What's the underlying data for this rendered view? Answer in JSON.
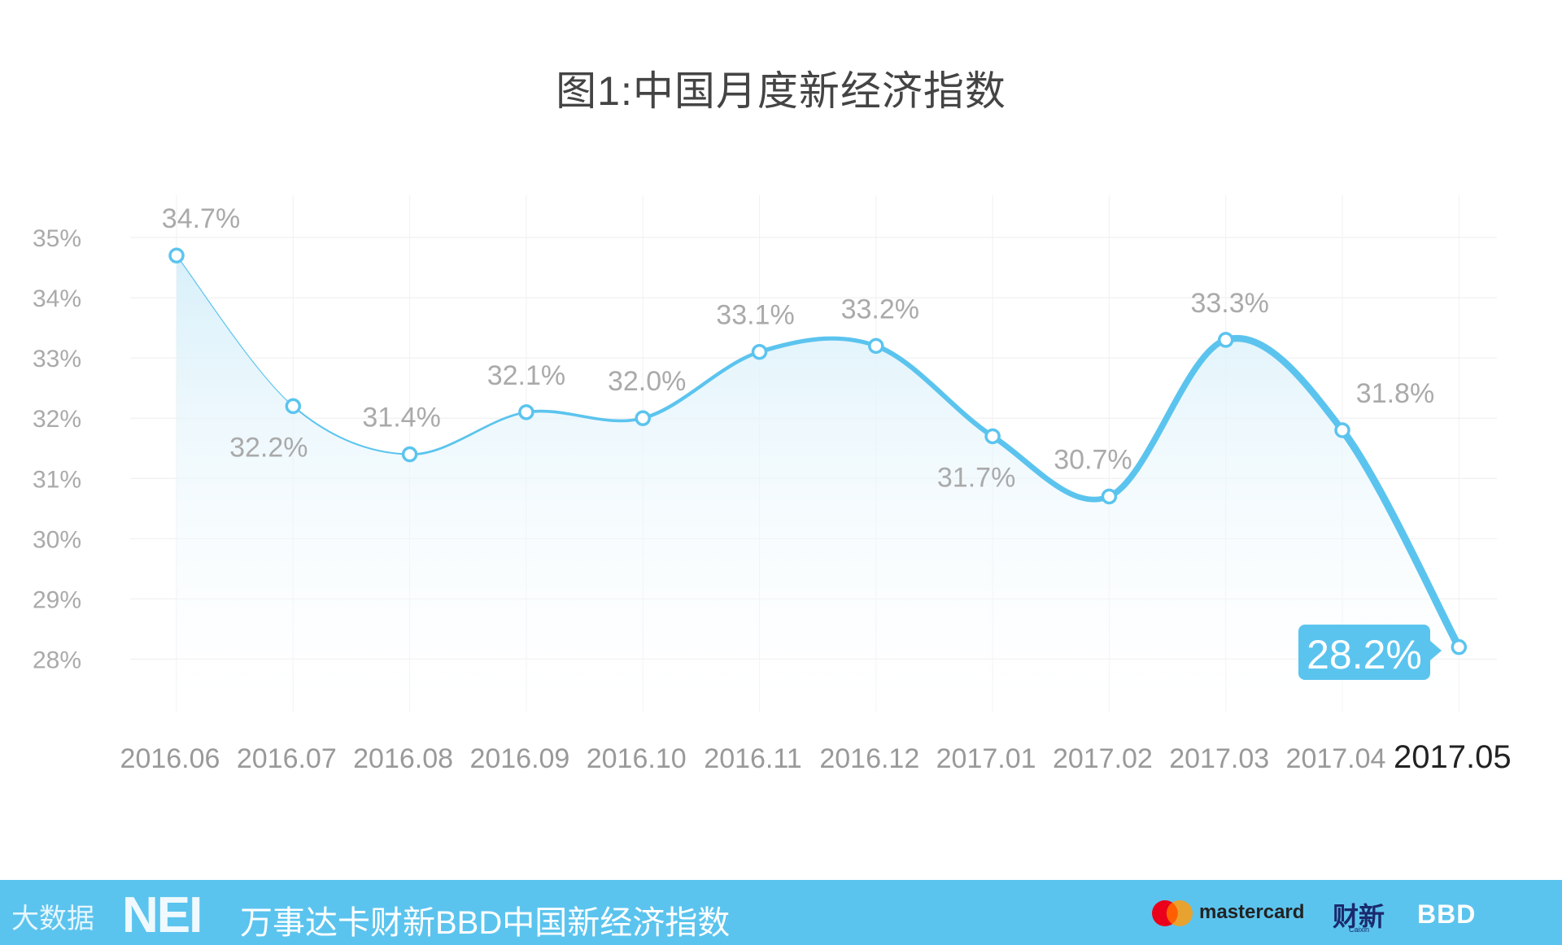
{
  "title": "图1:中国月度新经济指数",
  "chart_data": {
    "type": "line",
    "categories": [
      "2016.06",
      "2016.07",
      "2016.08",
      "2016.09",
      "2016.10",
      "2016.11",
      "2016.12",
      "2017.01",
      "2017.02",
      "2017.03",
      "2017.04",
      "2017.05"
    ],
    "values": [
      34.7,
      32.2,
      31.4,
      32.1,
      32.0,
      33.1,
      33.2,
      31.7,
      30.7,
      33.3,
      31.8,
      28.2
    ],
    "data_labels": [
      "34.7%",
      "32.2%",
      "31.4%",
      "32.1%",
      "32.0%",
      "33.1%",
      "33.2%",
      "31.7%",
      "30.7%",
      "33.3%",
      "31.8%",
      "28.2%"
    ],
    "y_ticks": [
      "35%",
      "34%",
      "33%",
      "32%",
      "31%",
      "30%",
      "29%",
      "28%"
    ],
    "ylim": [
      28,
      35
    ],
    "grid": true,
    "highlight_index": 11,
    "line_color": "#5bc4ee",
    "area_color": "#e6f5fc"
  },
  "footer": {
    "watermark": "大数据",
    "brand_short": "NEI",
    "title": "万事达卡财新BBD中国新经济指数",
    "sponsor_mastercard": "mastercard",
    "sponsor_caixin": "财新",
    "sponsor_caixin_sub": "Caixin",
    "sponsor_bbd": "BBD"
  }
}
